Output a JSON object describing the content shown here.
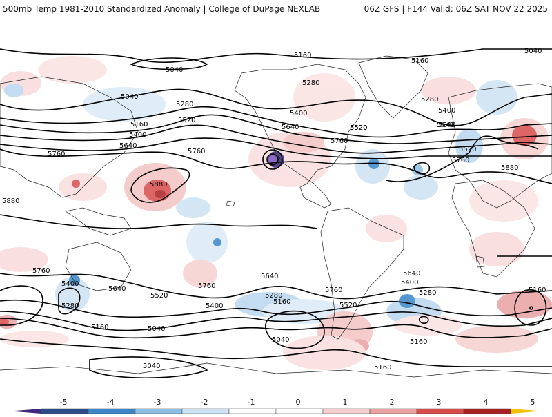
{
  "header": {
    "left_title": "500mb Temp 1981-2010 Standardized Anomaly | College of DuPage NEXLAB",
    "right_title": "06Z GFS | F144 Valid: 06Z SAT NOV 22 2025"
  },
  "contour_labels": [
    "5040",
    "5160",
    "5040",
    "5160",
    "5040",
    "5160",
    "5280",
    "5520",
    "5640",
    "5400",
    "5520",
    "5640",
    "5760",
    "5760",
    "5880",
    "5880",
    "5280",
    "5400",
    "5520",
    "5640",
    "5760",
    "5640",
    "5760",
    "5760",
    "5400",
    "5280",
    "5520",
    "5160",
    "5040",
    "5400",
    "5280",
    "5160",
    "5040",
    "5640",
    "5760",
    "5400",
    "5520",
    "5640",
    "5280",
    "5160",
    "5040",
    "5160",
    "5880",
    "5760",
    "5520",
    "5640",
    "5400",
    "5160",
    "5280"
  ],
  "colorbar": {
    "ticks": [
      "-5",
      "-4",
      "-3",
      "-2",
      "-1",
      "0",
      "1",
      "2",
      "3",
      "4",
      "5"
    ],
    "colors": [
      "#3f2a7d",
      "#2c4a86",
      "#3a86c7",
      "#8dbfe4",
      "#cfe2f3",
      "#ffffff",
      "#ffffff",
      "#f6cfcf",
      "#e9a2a2",
      "#d94b4b",
      "#a81f1f",
      "#7a0c0c"
    ]
  }
}
